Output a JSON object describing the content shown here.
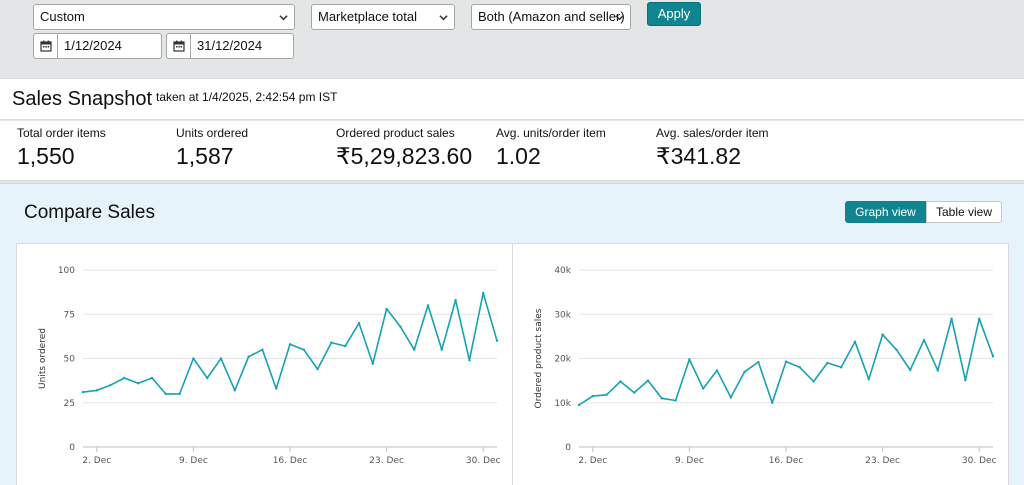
{
  "filters": {
    "date_range": "Custom",
    "marketplace": "Marketplace total",
    "fulfillment": "Both (Amazon and seller)",
    "apply_label": "Apply",
    "start_date": "1/12/2024",
    "end_date": "31/12/2024"
  },
  "snapshot": {
    "title": "Sales Snapshot",
    "taken_at": "taken at 1/4/2025, 2:42:54 pm IST",
    "metrics": [
      {
        "label": "Total order items",
        "value": "1,550"
      },
      {
        "label": "Units ordered",
        "value": "1,587"
      },
      {
        "label": "Ordered product sales",
        "value": "₹5,29,823.60"
      },
      {
        "label": "Avg. units/order item",
        "value": "1.02"
      },
      {
        "label": "Avg. sales/order item",
        "value": "₹341.82"
      }
    ]
  },
  "compare": {
    "title": "Compare Sales",
    "graph_view_label": "Graph view",
    "table_view_label": "Table view"
  },
  "icons": {
    "chevron": "chevron-down-icon",
    "calendar": "calendar-icon"
  },
  "colors": {
    "accent": "#10848f",
    "line": "#17a2b0"
  },
  "chart_data": [
    {
      "type": "line",
      "x": [
        "1 Dec",
        "2 Dec",
        "3 Dec",
        "4 Dec",
        "5 Dec",
        "6 Dec",
        "7 Dec",
        "8 Dec",
        "9 Dec",
        "10 Dec",
        "11 Dec",
        "12 Dec",
        "13 Dec",
        "14 Dec",
        "15 Dec",
        "16 Dec",
        "17 Dec",
        "18 Dec",
        "19 Dec",
        "20 Dec",
        "21 Dec",
        "22 Dec",
        "23 Dec",
        "24 Dec",
        "25 Dec",
        "26 Dec",
        "27 Dec",
        "28 Dec",
        "29 Dec",
        "30 Dec",
        "31 Dec"
      ],
      "x_tick_labels": [
        "2. Dec",
        "9. Dec",
        "16. Dec",
        "23. Dec",
        "30. Dec"
      ],
      "x_tick_indices": [
        1,
        8,
        15,
        22,
        29
      ],
      "values": [
        31,
        32,
        35,
        39,
        36,
        39,
        30,
        30,
        50,
        39,
        50,
        32,
        51,
        55,
        33,
        58,
        55,
        44,
        59,
        57,
        70,
        47,
        78,
        68,
        55,
        80,
        55,
        83,
        49,
        87,
        60
      ],
      "ylabel": "Units ordered",
      "ylim": [
        0,
        100
      ],
      "y_ticks": [
        0,
        25,
        50,
        75,
        100
      ],
      "y_tick_labels": [
        "0",
        "25",
        "50",
        "75",
        "100"
      ],
      "grid": true
    },
    {
      "type": "line",
      "x": [
        "1 Dec",
        "2 Dec",
        "3 Dec",
        "4 Dec",
        "5 Dec",
        "6 Dec",
        "7 Dec",
        "8 Dec",
        "9 Dec",
        "10 Dec",
        "11 Dec",
        "12 Dec",
        "13 Dec",
        "14 Dec",
        "15 Dec",
        "16 Dec",
        "17 Dec",
        "18 Dec",
        "19 Dec",
        "20 Dec",
        "21 Dec",
        "22 Dec",
        "23 Dec",
        "24 Dec",
        "25 Dec",
        "26 Dec",
        "27 Dec",
        "28 Dec",
        "29 Dec",
        "30 Dec",
        "31 Dec"
      ],
      "x_tick_labels": [
        "2. Dec",
        "9. Dec",
        "16. Dec",
        "23. Dec",
        "30. Dec"
      ],
      "x_tick_indices": [
        1,
        8,
        15,
        22,
        29
      ],
      "values": [
        9500,
        11500,
        11800,
        14800,
        12300,
        15000,
        11000,
        10500,
        19800,
        13200,
        17300,
        11200,
        17000,
        19200,
        10000,
        19300,
        18000,
        14800,
        19000,
        18000,
        23800,
        15300,
        25400,
        22000,
        17400,
        24200,
        17300,
        29000,
        15100,
        29000,
        20500
      ],
      "ylabel": "Ordered product sales",
      "ylim": [
        0,
        40000
      ],
      "y_ticks": [
        0,
        10000,
        20000,
        30000,
        40000
      ],
      "y_tick_labels": [
        "0",
        "10k",
        "20k",
        "30k",
        "40k"
      ],
      "grid": true
    }
  ]
}
